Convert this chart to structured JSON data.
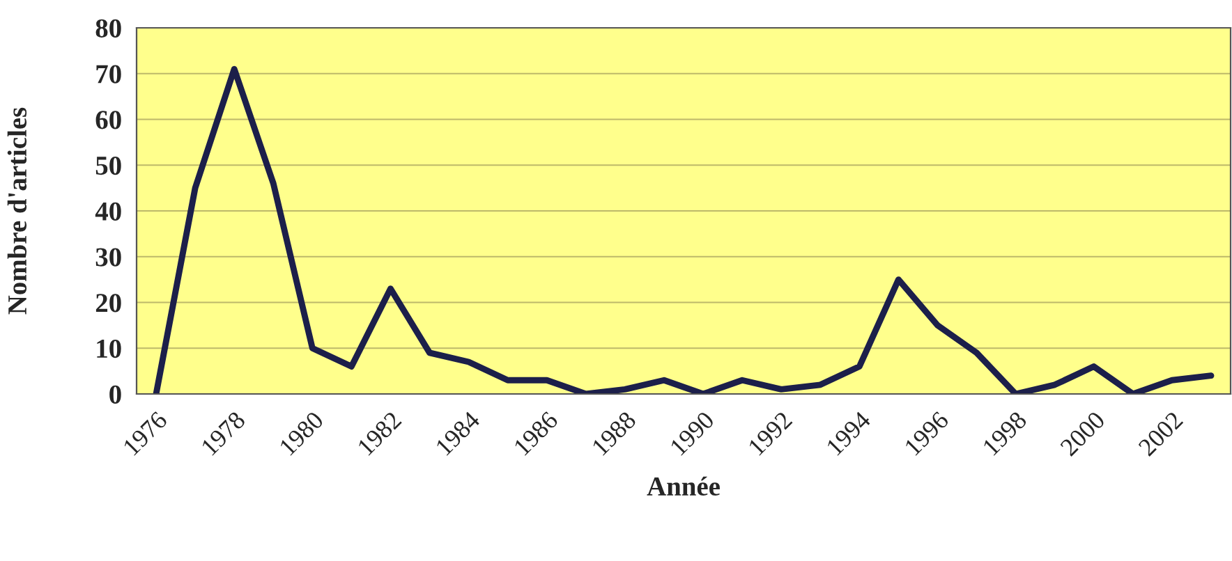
{
  "chart_data": {
    "type": "line",
    "xlabel": "Année",
    "ylabel": "Nombre d'articles",
    "categories": [
      "1976",
      null,
      "1978",
      null,
      "1980",
      null,
      "1982",
      null,
      "1984",
      null,
      "1986",
      null,
      "1988",
      null,
      "1990",
      null,
      "1992",
      null,
      "1994",
      null,
      "1996",
      null,
      "1998",
      null,
      "2000",
      null,
      "2002",
      null
    ],
    "series": [
      {
        "color": "#1c1f4a",
        "values": [
          0,
          45,
          71,
          46,
          10,
          6,
          23,
          9,
          7,
          3,
          3,
          0,
          1,
          3,
          0,
          3,
          1,
          2,
          6,
          25,
          15,
          9,
          0,
          2,
          6,
          0,
          3,
          4
        ]
      }
    ],
    "ylim": [
      0,
      80
    ],
    "yticks": [
      0,
      10,
      20,
      30,
      40,
      50,
      60,
      70,
      80
    ],
    "grid": "y",
    "marker": "none",
    "line_style": "solid"
  }
}
